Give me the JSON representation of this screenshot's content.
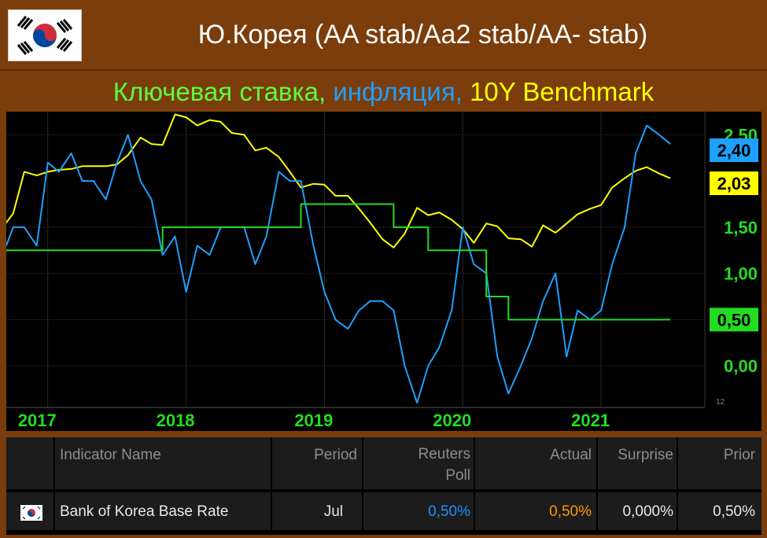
{
  "header": {
    "title": "Ю.Корея (AA stab/Aa2 stab/AA- stab)",
    "flag_icon": "south-korea-flag-icon"
  },
  "subtitle": {
    "part1": "Ключевая ставка,",
    "part2": " инфляция,",
    "part3": " 10Y Benchmark",
    "colors": {
      "green": "#5cff3a",
      "blue": "#1ea0ff",
      "yellow": "#ffff00"
    }
  },
  "chart_data": {
    "type": "line",
    "xlabel": "",
    "ylabel": "",
    "x_tick_labels": [
      "2017",
      "2018",
      "2019",
      "2020",
      "2021"
    ],
    "x_tick_values": [
      2017.0,
      2018.0,
      2019.0,
      2020.0,
      2021.0
    ],
    "xlim": [
      2016.7,
      2021.75
    ],
    "ylim": [
      -0.45,
      2.75
    ],
    "y_tick_labels": [
      "0,00",
      "0,50",
      "1,00",
      "1,50",
      "2,50"
    ],
    "y_tick_values": [
      0.0,
      0.5,
      1.0,
      1.5,
      2.5
    ],
    "y_axis_footer_label": "12",
    "grid": true,
    "series": [
      {
        "color": "#ffff00",
        "last_label": "2,03",
        "x": [
          2016.7,
          2016.75,
          2016.83,
          2016.92,
          2017.0,
          2017.08,
          2017.17,
          2017.25,
          2017.33,
          2017.42,
          2017.5,
          2017.58,
          2017.67,
          2017.75,
          2017.83,
          2017.92,
          2018.0,
          2018.08,
          2018.17,
          2018.25,
          2018.33,
          2018.42,
          2018.5,
          2018.58,
          2018.67,
          2018.75,
          2018.83,
          2018.92,
          2019.0,
          2019.08,
          2019.17,
          2019.25,
          2019.33,
          2019.42,
          2019.5,
          2019.58,
          2019.67,
          2019.75,
          2019.83,
          2019.92,
          2020.0,
          2020.08,
          2020.17,
          2020.25,
          2020.33,
          2020.42,
          2020.5,
          2020.58,
          2020.67,
          2020.75,
          2020.83,
          2020.92,
          2021.0,
          2021.08,
          2021.17,
          2021.25,
          2021.33,
          2021.42,
          2021.5
        ],
        "values": [
          1.55,
          1.65,
          2.1,
          2.06,
          2.1,
          2.12,
          2.13,
          2.16,
          2.16,
          2.16,
          2.18,
          2.28,
          2.47,
          2.4,
          2.39,
          2.72,
          2.69,
          2.6,
          2.66,
          2.64,
          2.52,
          2.5,
          2.33,
          2.36,
          2.26,
          2.1,
          1.93,
          1.97,
          1.96,
          1.84,
          1.84,
          1.7,
          1.55,
          1.37,
          1.28,
          1.43,
          1.71,
          1.63,
          1.66,
          1.58,
          1.48,
          1.33,
          1.54,
          1.51,
          1.38,
          1.37,
          1.29,
          1.52,
          1.44,
          1.54,
          1.64,
          1.7,
          1.74,
          1.93,
          2.03,
          2.11,
          2.15,
          2.08,
          2.03
        ]
      },
      {
        "color": "#1ea0ff",
        "last_label": "2,40",
        "x": [
          2016.7,
          2016.75,
          2016.83,
          2016.92,
          2017.0,
          2017.08,
          2017.17,
          2017.25,
          2017.33,
          2017.42,
          2017.5,
          2017.58,
          2017.67,
          2017.75,
          2017.83,
          2017.92,
          2018.0,
          2018.08,
          2018.17,
          2018.25,
          2018.33,
          2018.42,
          2018.5,
          2018.58,
          2018.67,
          2018.75,
          2018.83,
          2018.92,
          2019.0,
          2019.08,
          2019.17,
          2019.25,
          2019.33,
          2019.42,
          2019.5,
          2019.58,
          2019.67,
          2019.75,
          2019.83,
          2019.92,
          2020.0,
          2020.08,
          2020.17,
          2020.25,
          2020.33,
          2020.42,
          2020.5,
          2020.58,
          2020.67,
          2020.75,
          2020.83,
          2020.92,
          2021.0,
          2021.08,
          2021.17,
          2021.25,
          2021.33,
          2021.42,
          2021.5
        ],
        "values": [
          1.3,
          1.5,
          1.5,
          1.3,
          2.2,
          2.1,
          2.3,
          2.0,
          2.0,
          1.8,
          2.2,
          2.5,
          2.0,
          1.8,
          1.2,
          1.4,
          0.8,
          1.3,
          1.2,
          1.5,
          1.5,
          1.5,
          1.1,
          1.4,
          2.1,
          2.0,
          2.0,
          1.3,
          0.8,
          0.5,
          0.4,
          0.6,
          0.7,
          0.7,
          0.6,
          0.0,
          -0.4,
          0.0,
          0.2,
          0.6,
          1.5,
          1.1,
          1.0,
          0.1,
          -0.3,
          0.0,
          0.3,
          0.7,
          1.0,
          0.1,
          0.6,
          0.5,
          0.6,
          1.1,
          1.5,
          2.3,
          2.6,
          2.5,
          2.4
        ]
      },
      {
        "color": "#22dd22",
        "last_label": "0,50",
        "x": [
          2016.7,
          2017.83,
          2017.83,
          2018.83,
          2018.83,
          2019.5,
          2019.5,
          2019.58,
          2019.58,
          2019.75,
          2019.75,
          2020.17,
          2020.17,
          2020.33,
          2020.33,
          2021.5
        ],
        "values": [
          1.25,
          1.25,
          1.5,
          1.5,
          1.75,
          1.75,
          1.5,
          1.5,
          1.5,
          1.5,
          1.25,
          1.25,
          0.75,
          0.75,
          0.5,
          0.5
        ]
      }
    ]
  },
  "table": {
    "headers": [
      "Indicator Name",
      "Period",
      "Reuters\nPoll",
      "Actual",
      "Surprise",
      "Prior"
    ],
    "row": {
      "flag_icon": "south-korea-flag-icon",
      "indicator": "Bank of Korea Base Rate",
      "period": "Jul",
      "poll": "0,50%",
      "actual": "0,50%",
      "surprise": "0,000%",
      "prior": "0,50%"
    },
    "colors": {
      "poll": "#1e90ff",
      "actual": "#ff9900"
    }
  }
}
